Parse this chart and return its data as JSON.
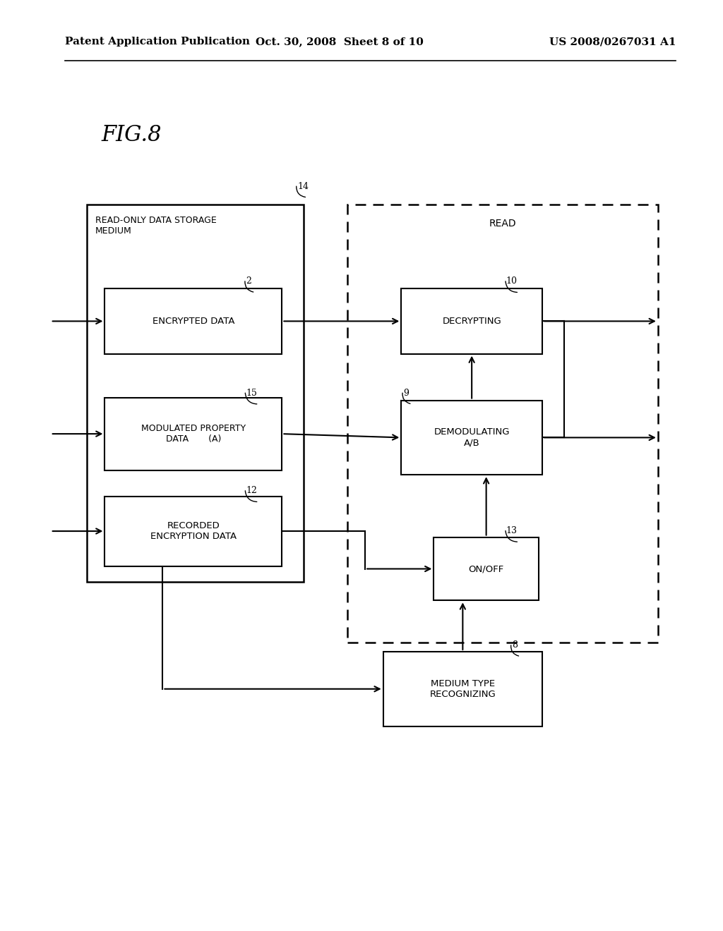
{
  "background_color": "#ffffff",
  "header_left": "Patent Application Publication",
  "header_center": "Oct. 30, 2008  Sheet 8 of 10",
  "header_right": "US 2008/0267031 A1",
  "fig_label": "FIG.8"
}
